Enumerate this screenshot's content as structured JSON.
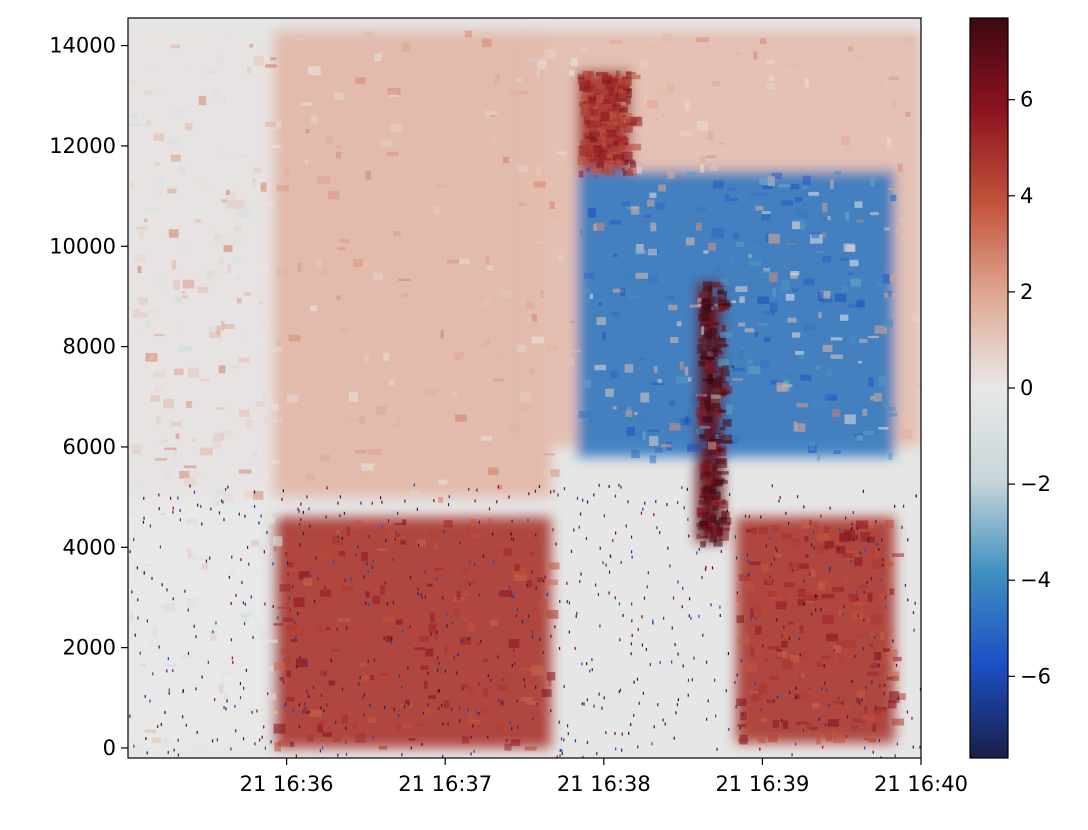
{
  "chart_data": {
    "type": "heatmap",
    "title": "",
    "xlabel": "",
    "ylabel": "",
    "x_axis": {
      "kind": "time",
      "range": [
        "21 16:35:00",
        "21 16:40:00"
      ],
      "ticks": [
        "21 16:36",
        "21 16:37",
        "21 16:38",
        "21 16:39",
        "21 16:40"
      ]
    },
    "y_axis": {
      "range": [
        -200,
        14550
      ],
      "ticks": [
        0,
        2000,
        4000,
        6000,
        8000,
        10000,
        12000,
        14000
      ],
      "tick_labels": [
        "0",
        "2000",
        "4000",
        "6000",
        "8000",
        "10000",
        "12000",
        "14000"
      ]
    },
    "colorbar": {
      "range": [
        -7.7,
        7.7
      ],
      "ticks": [
        -6,
        -4,
        -2,
        0,
        2,
        4,
        6
      ],
      "tick_labels": [
        "−6",
        "−4",
        "−2",
        "0",
        "2",
        "4",
        "6"
      ],
      "colormap": "balance (diverging: dark navy → blue → light gray → red → dark maroon)",
      "colors": [
        "#191f49",
        "#1c4fc4",
        "#3f8fc0",
        "#c7d6d9",
        "#e8e8e8",
        "#e0a892",
        "#c2533a",
        "#8e1320",
        "#3c0911"
      ]
    },
    "background_color": "#e6e6e6",
    "regions": [
      {
        "x": [
          "16:35:00",
          "16:37:40"
        ],
        "y": [
          5000,
          14300
        ],
        "value": 1.5
      },
      {
        "x": [
          "16:35:00",
          "16:35:55"
        ],
        "y": [
          0,
          14300
        ],
        "value": 0
      },
      {
        "x": [
          "16:37:30",
          "16:40:00"
        ],
        "y": [
          6000,
          14300
        ],
        "value": 1.3
      },
      {
        "x": [
          "16:35:55",
          "16:37:40"
        ],
        "y": [
          0,
          4600
        ],
        "value": 4.8
      },
      {
        "x": [
          "16:38:50",
          "16:39:50"
        ],
        "y": [
          100,
          4600
        ],
        "value": 4.8
      },
      {
        "x": [
          "16:37:50",
          "16:39:50"
        ],
        "y": [
          5800,
          11500
        ],
        "value": -4.5
      },
      {
        "x": [
          "16:38:35",
          "16:38:45"
        ],
        "y": [
          4100,
          9300
        ],
        "value": 7.0
      },
      {
        "x": [
          "16:37:50",
          "16:38:10"
        ],
        "y": [
          11500,
          13500
        ],
        "value": 5.0
      }
    ]
  }
}
